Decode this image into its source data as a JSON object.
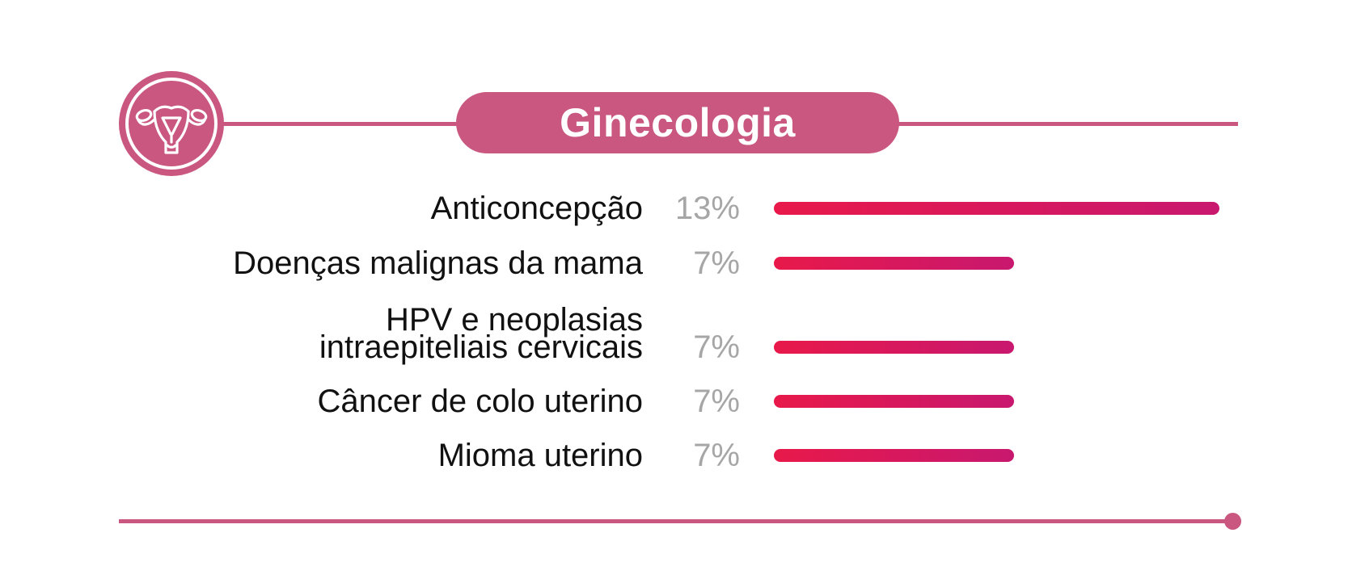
{
  "colors": {
    "accent": "#c9577f",
    "bar_start": "#e8194a",
    "bar_end": "#c8186f",
    "label": "#111111",
    "percent": "#a6a6a6"
  },
  "header": {
    "title": "Ginecologia",
    "icon": "uterus-icon"
  },
  "chart_data": {
    "type": "bar",
    "orientation": "horizontal",
    "title": "Ginecologia",
    "categories": [
      "Anticoncepção",
      "Doenças malignas da mama",
      "HPV e neoplasias intraepiteliais cervicais",
      "Câncer de colo uterino",
      "Mioma uterino"
    ],
    "values": [
      13,
      7,
      7,
      7,
      7
    ],
    "value_labels": [
      "13%",
      "7%",
      "7%",
      "7%",
      "7%"
    ],
    "unit": "%",
    "xlim": [
      0,
      13
    ],
    "grid": false,
    "legend": "none"
  },
  "rows": [
    {
      "label_lines": [
        "Anticoncepção"
      ],
      "percent": "13%"
    },
    {
      "label_lines": [
        "Doenças malignas da mama"
      ],
      "percent": "7%"
    },
    {
      "label_lines": [
        "HPV e neoplasias",
        "intraepiteliais cervicais"
      ],
      "percent": "7%"
    },
    {
      "label_lines": [
        "Câncer de colo uterino"
      ],
      "percent": "7%"
    },
    {
      "label_lines": [
        "Mioma uterino"
      ],
      "percent": "7%"
    }
  ]
}
